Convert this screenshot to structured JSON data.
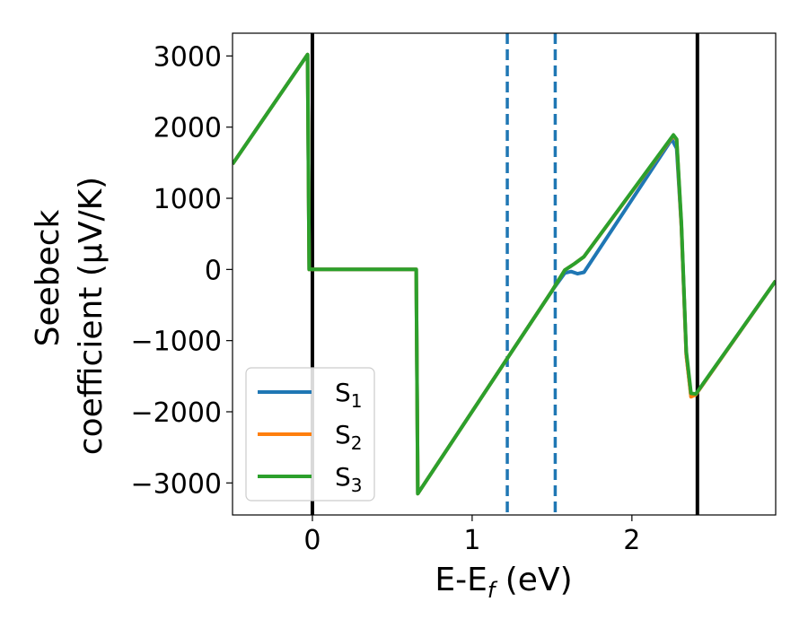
{
  "chart_data": {
    "type": "line",
    "xlabel_main": "E-E",
    "xlabel_sub": "f",
    "xlabel_unit": " (eV)",
    "ylabel_line1": "Seebeck",
    "ylabel_line2": "coefficient  (μV/K)",
    "xlim": [
      -0.5,
      2.9
    ],
    "ylim": [
      -3450,
      3320
    ],
    "xticks": [
      0,
      1,
      2
    ],
    "xtick_labels": [
      "0",
      "1",
      "2"
    ],
    "yticks": [
      -3000,
      -2000,
      -1000,
      0,
      1000,
      2000,
      3000
    ],
    "ytick_labels": [
      "−3000",
      "−2000",
      "−1000",
      "0",
      "1000",
      "2000",
      "3000"
    ],
    "grid": false,
    "legend_position": "lower-left",
    "vlines": [
      {
        "x": 0.0,
        "style": "solid",
        "color": "#000000"
      },
      {
        "x": 1.22,
        "style": "dashed",
        "color": "#1f77b4"
      },
      {
        "x": 1.52,
        "style": "dashed",
        "color": "#1f77b4"
      },
      {
        "x": 2.41,
        "style": "solid",
        "color": "#000000"
      }
    ],
    "series": [
      {
        "name": "S",
        "sub": "1",
        "color": "#1f77b4",
        "x": [
          -0.5,
          -0.03,
          -0.02,
          0.65,
          0.66,
          1.5,
          1.58,
          1.62,
          1.66,
          1.7,
          2.25,
          2.28,
          2.31,
          2.34,
          2.37,
          2.4,
          2.9
        ],
        "y": [
          1480,
          3020,
          0,
          0,
          -3150,
          -300,
          -50,
          -30,
          -60,
          -40,
          1830,
          1700,
          600,
          -1200,
          -1780,
          -1760,
          -160
        ]
      },
      {
        "name": "S",
        "sub": "2",
        "color": "#ff7f0e",
        "x": [
          -0.5,
          -0.03,
          -0.02,
          0.65,
          0.66,
          1.5,
          1.58,
          1.64,
          1.7,
          2.26,
          2.28,
          2.31,
          2.34,
          2.37,
          2.4,
          2.9
        ],
        "y": [
          1480,
          3020,
          0,
          0,
          -3150,
          -300,
          -10,
          80,
          180,
          1880,
          1820,
          600,
          -1200,
          -1790,
          -1760,
          -160
        ]
      },
      {
        "name": "S",
        "sub": "3",
        "color": "#2ca02c",
        "x": [
          -0.5,
          -0.03,
          -0.02,
          0.65,
          0.66,
          1.5,
          1.58,
          1.64,
          1.7,
          2.26,
          2.28,
          2.31,
          2.34,
          2.37,
          2.4,
          2.9
        ],
        "y": [
          1480,
          3020,
          0,
          0,
          -3150,
          -300,
          -10,
          80,
          180,
          1890,
          1830,
          650,
          -1150,
          -1740,
          -1750,
          -160
        ]
      }
    ]
  }
}
